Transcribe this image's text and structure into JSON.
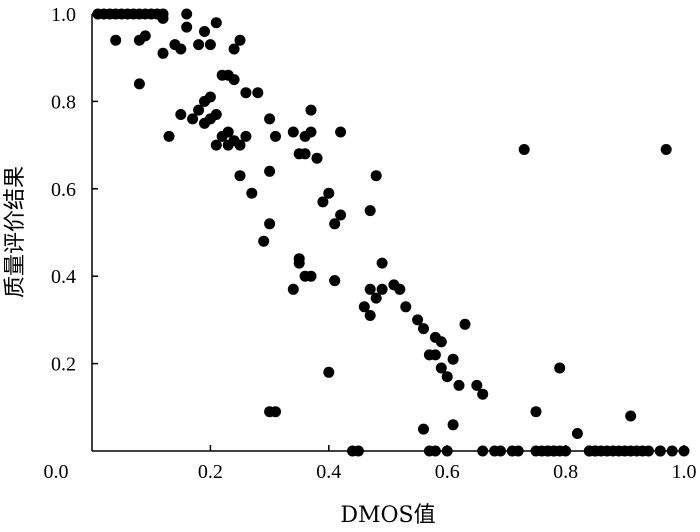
{
  "chart_data": {
    "type": "scatter",
    "title": "",
    "xlabel": "DMOS值",
    "ylabel": "质量评价结果",
    "xlim": [
      0.0,
      1.0
    ],
    "ylim": [
      0.0,
      1.0
    ],
    "x_ticks": [
      0.2,
      0.4,
      0.6,
      0.8,
      1.0
    ],
    "x_tick_labels": [
      "0.2",
      "0.4",
      "0.6",
      "0.8",
      "1.0"
    ],
    "y_ticks": [
      0.2,
      0.4,
      0.6,
      0.8,
      1.0
    ],
    "y_tick_labels": [
      "0.2",
      "0.4",
      "0.6",
      "0.8",
      "1.0"
    ],
    "origin_label": "0.0",
    "grid": false,
    "legend": "none",
    "marker_color": "#000000",
    "series": [
      {
        "x": [
          0.01,
          0.02,
          0.03,
          0.04,
          0.05,
          0.06,
          0.07,
          0.08,
          0.09,
          0.1,
          0.11,
          0.12,
          0.16,
          0.21,
          0.04,
          0.08,
          0.09,
          0.12,
          0.14,
          0.15,
          0.16,
          0.18,
          0.19,
          0.2,
          0.12,
          0.08,
          0.13,
          0.15,
          0.17,
          0.18,
          0.19,
          0.2,
          0.21,
          0.22,
          0.23,
          0.24,
          0.25,
          0.26,
          0.24,
          0.23,
          0.25,
          0.19,
          0.2,
          0.21,
          0.22,
          0.23,
          0.24,
          0.26,
          0.27,
          0.25,
          0.28,
          0.3,
          0.31,
          0.3,
          0.29,
          0.3,
          0.31,
          0.34,
          0.35,
          0.36,
          0.37,
          0.38,
          0.36,
          0.37,
          0.35,
          0.36,
          0.39,
          0.4,
          0.41,
          0.42,
          0.42,
          0.41,
          0.44,
          0.34,
          0.35,
          0.37,
          0.4,
          0.41,
          0.47,
          0.48,
          0.49,
          0.47,
          0.48,
          0.46,
          0.47,
          0.49,
          0.51,
          0.52,
          0.53,
          0.55,
          0.56,
          0.58,
          0.57,
          0.59,
          0.58,
          0.59,
          0.6,
          0.61,
          0.62,
          0.63,
          0.65,
          0.66,
          0.45,
          0.56,
          0.57,
          0.58,
          0.6,
          0.61,
          0.66,
          0.68,
          0.69,
          0.71,
          0.72,
          0.75,
          0.77,
          0.78,
          0.8,
          0.75,
          0.79,
          0.82,
          0.73,
          0.97,
          0.91,
          0.3,
          0.76,
          0.77,
          0.78,
          0.79,
          0.84,
          0.85,
          0.86,
          0.87,
          0.88,
          0.89,
          0.9,
          0.92,
          0.94,
          0.96,
          0.98,
          1.0,
          0.84,
          0.85,
          0.91,
          0.93,
          0.96
        ],
        "y": [
          1.0,
          1.0,
          1.0,
          1.0,
          1.0,
          1.0,
          1.0,
          1.0,
          1.0,
          1.0,
          1.0,
          1.0,
          1.0,
          0.98,
          0.94,
          0.94,
          0.95,
          0.91,
          0.93,
          0.92,
          0.97,
          0.93,
          0.96,
          0.93,
          0.99,
          0.84,
          0.72,
          0.77,
          0.76,
          0.78,
          0.8,
          0.81,
          0.77,
          0.86,
          0.86,
          0.85,
          0.94,
          0.82,
          0.92,
          0.7,
          0.7,
          0.75,
          0.76,
          0.7,
          0.72,
          0.73,
          0.71,
          0.72,
          0.59,
          0.63,
          0.82,
          0.76,
          0.72,
          0.64,
          0.48,
          0.52,
          0.09,
          0.73,
          0.68,
          0.68,
          0.78,
          0.67,
          0.72,
          0.73,
          0.44,
          0.4,
          0.57,
          0.59,
          0.52,
          0.54,
          0.73,
          0.39,
          0.0,
          0.37,
          0.43,
          0.4,
          0.18,
          0.39,
          0.55,
          0.63,
          0.43,
          0.37,
          0.35,
          0.33,
          0.31,
          0.37,
          0.38,
          0.37,
          0.33,
          0.3,
          0.28,
          0.26,
          0.22,
          0.25,
          0.22,
          0.19,
          0.17,
          0.21,
          0.15,
          0.29,
          0.15,
          0.13,
          0.0,
          0.05,
          0.0,
          0.0,
          0.0,
          0.06,
          0.0,
          0.0,
          0.0,
          0.0,
          0.0,
          0.0,
          0.0,
          0.0,
          0.0,
          0.09,
          0.19,
          0.04,
          0.69,
          0.69,
          0.08,
          0.09,
          0.0,
          0.0,
          0.0,
          0.0,
          0.0,
          0.0,
          0.0,
          0.0,
          0.0,
          0.0,
          0.0,
          0.0,
          0.0,
          0.0,
          0.0,
          0.0,
          0.0,
          0.0,
          0.0,
          0.0,
          0.0
        ]
      }
    ]
  }
}
